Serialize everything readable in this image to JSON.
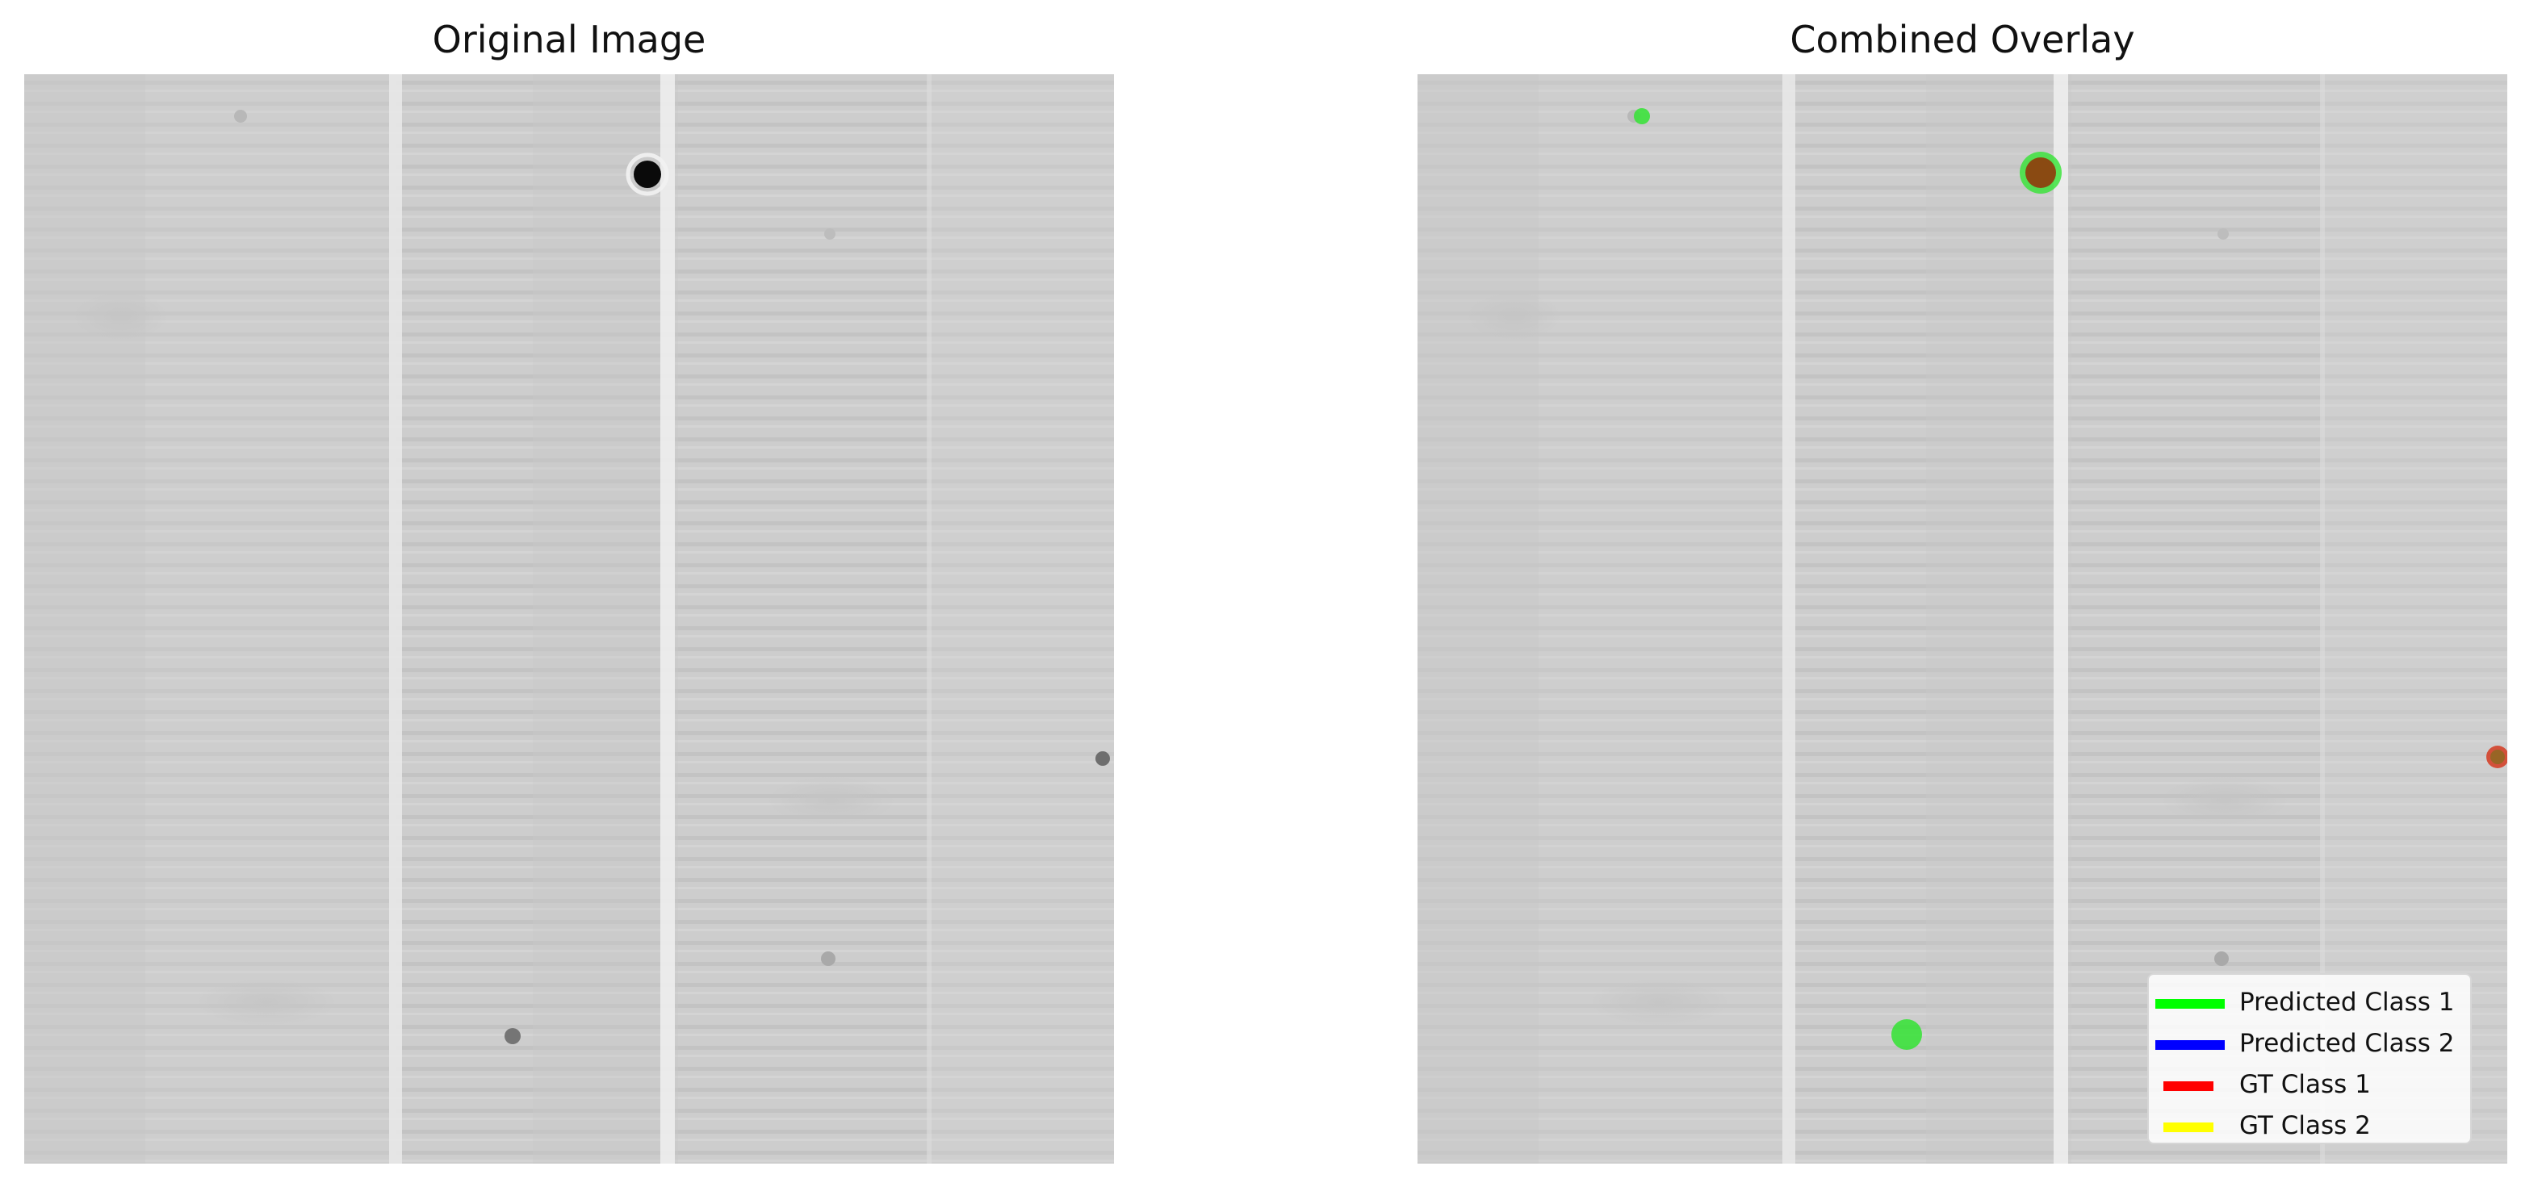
{
  "panels": {
    "left": {
      "title": "Original Image"
    },
    "right": {
      "title": "Combined Overlay"
    }
  },
  "legend": {
    "items": [
      {
        "label": "Predicted Class 1",
        "color": "#00ff00"
      },
      {
        "label": "Predicted Class 2",
        "color": "#0000ff"
      },
      {
        "label": "GT Class 1",
        "color": "#ff0000"
      },
      {
        "label": "GT Class 2",
        "color": "#ffff00"
      }
    ]
  },
  "colors": {
    "image_background": "#cfcfcf",
    "prediction_overlay": "#33e333",
    "overlap_overlay": "#8a4a12",
    "gt_overlay": "#d43a20"
  }
}
